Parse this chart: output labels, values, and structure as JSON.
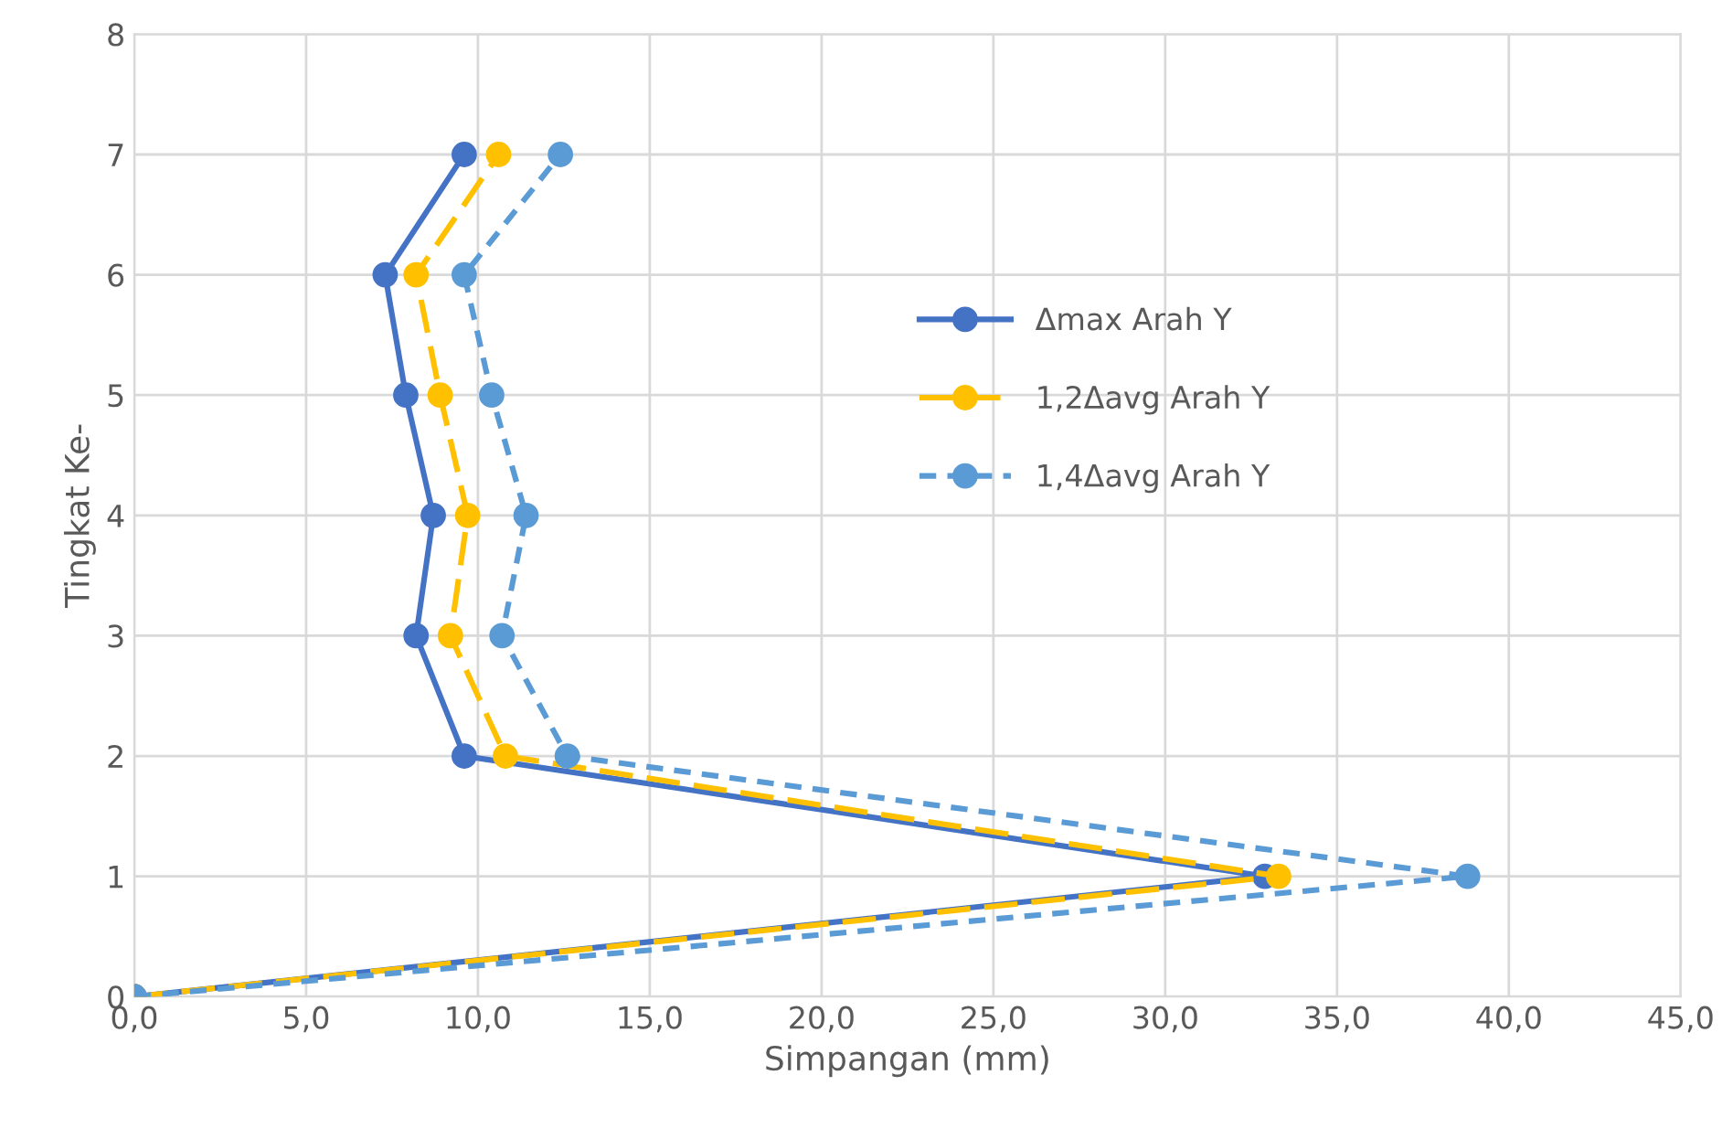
{
  "chart_data": {
    "type": "line",
    "xlabel": "Simpangan (mm)",
    "ylabel": "Tingkat Ke-",
    "xlim": [
      0,
      45
    ],
    "xticks": [
      {
        "value": 0,
        "label": "0,0"
      },
      {
        "value": 5,
        "label": "5,0"
      },
      {
        "value": 10,
        "label": "10,0"
      },
      {
        "value": 15,
        "label": "15,0"
      },
      {
        "value": 20,
        "label": "20,0"
      },
      {
        "value": 25,
        "label": "25,0"
      },
      {
        "value": 30,
        "label": "30,0"
      },
      {
        "value": 35,
        "label": "35,0"
      },
      {
        "value": 40,
        "label": "40,0"
      },
      {
        "value": 45,
        "label": "45,0"
      }
    ],
    "ylim": [
      0,
      8
    ],
    "yticks": [
      0,
      1,
      2,
      3,
      4,
      5,
      6,
      7,
      8
    ],
    "grid": true,
    "legend": "center",
    "marker": "circle",
    "series": [
      {
        "name": "Δmax Arah Y",
        "color": "#4472c4",
        "line_style": "solid",
        "x": [
          0,
          32.9,
          9.6,
          8.2,
          8.7,
          7.9,
          7.3,
          9.6
        ],
        "values": [
          0,
          1,
          2,
          3,
          4,
          5,
          6,
          7
        ]
      },
      {
        "name": "1,2Δavg Arah Y",
        "color": "#ffc000",
        "line_style": "dashed",
        "x": [
          0,
          33.3,
          10.8,
          9.2,
          9.7,
          8.9,
          8.2,
          10.6
        ],
        "values": [
          0,
          1,
          2,
          3,
          4,
          5,
          6,
          7
        ]
      },
      {
        "name": "1,4Δavg Arah Y",
        "color": "#5b9bd5",
        "line_style": "dotted",
        "x": [
          0,
          38.8,
          12.6,
          10.7,
          11.4,
          10.4,
          9.6,
          12.4
        ],
        "values": [
          0,
          1,
          2,
          3,
          4,
          5,
          6,
          7
        ]
      }
    ]
  }
}
